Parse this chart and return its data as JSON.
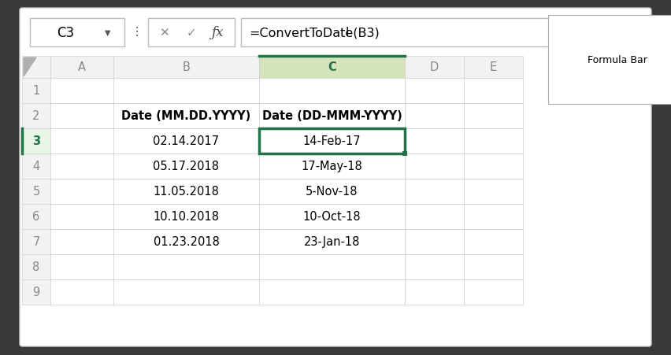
{
  "bg_outer": "#3a3a3a",
  "bg_inner": "#ffffff",
  "bg_cell_header": "#f2f2f2",
  "bg_col_c_header": "#d6e4bc",
  "border_selected": "#217346",
  "formula_bar_text": "=ConvertToDate(B3)",
  "cell_ref": "C3",
  "col_c_header_color": "#217346",
  "tooltip_text": "Formula Bar",
  "columns": [
    "",
    "A",
    "B",
    "C",
    "D",
    "E"
  ],
  "rows": [
    "1",
    "2",
    "3",
    "4",
    "5",
    "6",
    "7",
    "8",
    "9"
  ],
  "header_row2_B": "Date (MM.DD.YYYY)",
  "header_row2_C": "Date (DD-MMM-YYYY)",
  "data": {
    "3": {
      "B": "02.14.2017",
      "C": "14-Feb-17"
    },
    "4": {
      "B": "05.17.2018",
      "C": "17-May-18"
    },
    "5": {
      "B": "11.05.2018",
      "C": "5-Nov-18"
    },
    "6": {
      "B": "10.10.2018",
      "C": "10-Oct-18"
    },
    "7": {
      "B": "01.23.2018",
      "C": "23-Jan-18"
    }
  },
  "grid_color": "#d0d0d0",
  "text_color": "#000000",
  "header_text_color": "#888888",
  "row_number_color": "#217346",
  "font_size_data": 10.5,
  "font_size_header_col": 10.5,
  "font_size_toolbar": 11
}
